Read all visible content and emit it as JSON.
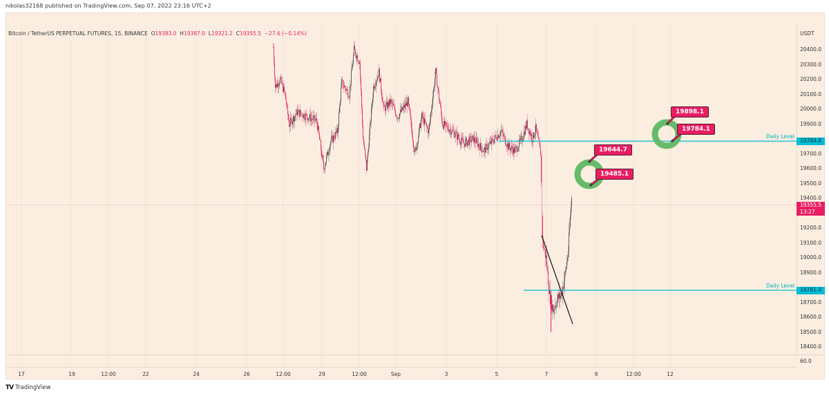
{
  "publish_line": "nikolas32168 published on TradingView.com, Sep 07, 2022 23:16 UTC+2",
  "legend": {
    "symbol": "Bitcoin / TetherUS PERPETUAL FUTURES, 15, BINANCE",
    "o_label": "O",
    "o": "19383.0",
    "h_label": "H",
    "h": "19387.0",
    "l_label": "L",
    "l": "19321.2",
    "c_label": "C",
    "c": "19355.5",
    "change": "−27.6 (−0.14%)"
  },
  "price_axis": {
    "unit": "USDT",
    "ticks": [
      "20400.0",
      "20300.0",
      "20200.0",
      "20100.0",
      "20000.0",
      "19900.0",
      "19800.0",
      "19700.0",
      "19600.0",
      "19500.0",
      "19400.0",
      "19300.0",
      "19200.0",
      "19100.0",
      "19000.0",
      "18900.0",
      "18800.0",
      "18700.0",
      "18600.0",
      "18500.0",
      "18400.0"
    ],
    "sub_tick": "60.0",
    "last_price": "19355.5",
    "countdown": "13:27",
    "level_tag_1": "19784.8",
    "level_tag_2": "18781.4"
  },
  "time_axis": {
    "labels": [
      "17",
      "19",
      "12:00",
      "22",
      "24",
      "26",
      "12:00",
      "29",
      "12:00",
      "Sep",
      "3",
      "5",
      "7",
      "9",
      "12:00",
      "12"
    ]
  },
  "annotations": {
    "daily_level_label": "Daily Level",
    "callouts": [
      "19898.1",
      "19784.1",
      "19644.7",
      "19485.1"
    ]
  },
  "footer": {
    "brand": "TradingView",
    "logo": "TV"
  },
  "colors": {
    "background": "#fbeee0",
    "up_candle": "#4a4a4a",
    "down_candle": "#e91e63",
    "level_line": "#00bcd4",
    "callout": "#e91e63",
    "circle": "#66bb6a"
  },
  "chart_data": {
    "type": "candlestick",
    "title": "Bitcoin / TetherUS PERPETUAL FUTURES, 15, BINANCE",
    "xlabel": "",
    "ylabel": "USDT",
    "ylim": [
      18350,
      20470
    ],
    "x_ticks": [
      "17",
      "19",
      "12:00",
      "22",
      "24",
      "26",
      "12:00",
      "29",
      "12:00",
      "Sep",
      "3",
      "5",
      "7",
      "9",
      "12:00",
      "12"
    ],
    "y_ticks": [
      20400,
      20300,
      20200,
      20100,
      20000,
      19900,
      19800,
      19700,
      19600,
      19500,
      19400,
      19300,
      19200,
      19100,
      19000,
      18900,
      18800,
      18700,
      18600,
      18500,
      18400
    ],
    "price_path": [
      {
        "x": 395,
        "p": 20420
      },
      {
        "x": 398,
        "p": 20150
      },
      {
        "x": 405,
        "p": 20200
      },
      {
        "x": 412,
        "p": 20100
      },
      {
        "x": 418,
        "p": 19900
      },
      {
        "x": 430,
        "p": 19980
      },
      {
        "x": 445,
        "p": 19950
      },
      {
        "x": 458,
        "p": 19920
      },
      {
        "x": 468,
        "p": 19600
      },
      {
        "x": 478,
        "p": 19780
      },
      {
        "x": 488,
        "p": 19850
      },
      {
        "x": 494,
        "p": 20180
      },
      {
        "x": 505,
        "p": 20100
      },
      {
        "x": 512,
        "p": 20400
      },
      {
        "x": 520,
        "p": 20320
      },
      {
        "x": 525,
        "p": 19800
      },
      {
        "x": 530,
        "p": 19600
      },
      {
        "x": 540,
        "p": 20150
      },
      {
        "x": 548,
        "p": 20250
      },
      {
        "x": 555,
        "p": 20000
      },
      {
        "x": 565,
        "p": 20050
      },
      {
        "x": 575,
        "p": 19950
      },
      {
        "x": 590,
        "p": 20050
      },
      {
        "x": 600,
        "p": 19700
      },
      {
        "x": 610,
        "p": 19950
      },
      {
        "x": 620,
        "p": 19850
      },
      {
        "x": 630,
        "p": 20250
      },
      {
        "x": 640,
        "p": 19900
      },
      {
        "x": 655,
        "p": 19850
      },
      {
        "x": 670,
        "p": 19770
      },
      {
        "x": 685,
        "p": 19800
      },
      {
        "x": 700,
        "p": 19720
      },
      {
        "x": 715,
        "p": 19800
      },
      {
        "x": 725,
        "p": 19850
      },
      {
        "x": 735,
        "p": 19750
      },
      {
        "x": 745,
        "p": 19720
      },
      {
        "x": 755,
        "p": 19800
      },
      {
        "x": 762,
        "p": 19900
      },
      {
        "x": 770,
        "p": 19800
      },
      {
        "x": 775,
        "p": 19870
      },
      {
        "x": 782,
        "p": 19700
      },
      {
        "x": 785,
        "p": 19100
      },
      {
        "x": 790,
        "p": 19000
      },
      {
        "x": 795,
        "p": 18750
      },
      {
        "x": 800,
        "p": 18650
      },
      {
        "x": 806,
        "p": 18720
      },
      {
        "x": 812,
        "p": 18750
      },
      {
        "x": 818,
        "p": 18900
      },
      {
        "x": 822,
        "p": 19050
      },
      {
        "x": 826,
        "p": 19350
      },
      {
        "x": 827,
        "p": 19400
      }
    ],
    "horizontal_levels": [
      {
        "label": "Daily Level",
        "price": 19784.8,
        "x_start": 722
      },
      {
        "label": "Daily Level",
        "price": 18781.4,
        "x_start": 758
      }
    ],
    "trendline": {
      "from": {
        "x": 784,
        "p": 19150
      },
      "to": {
        "x": 829,
        "p": 18555
      }
    },
    "last_price": 19355.5
  }
}
